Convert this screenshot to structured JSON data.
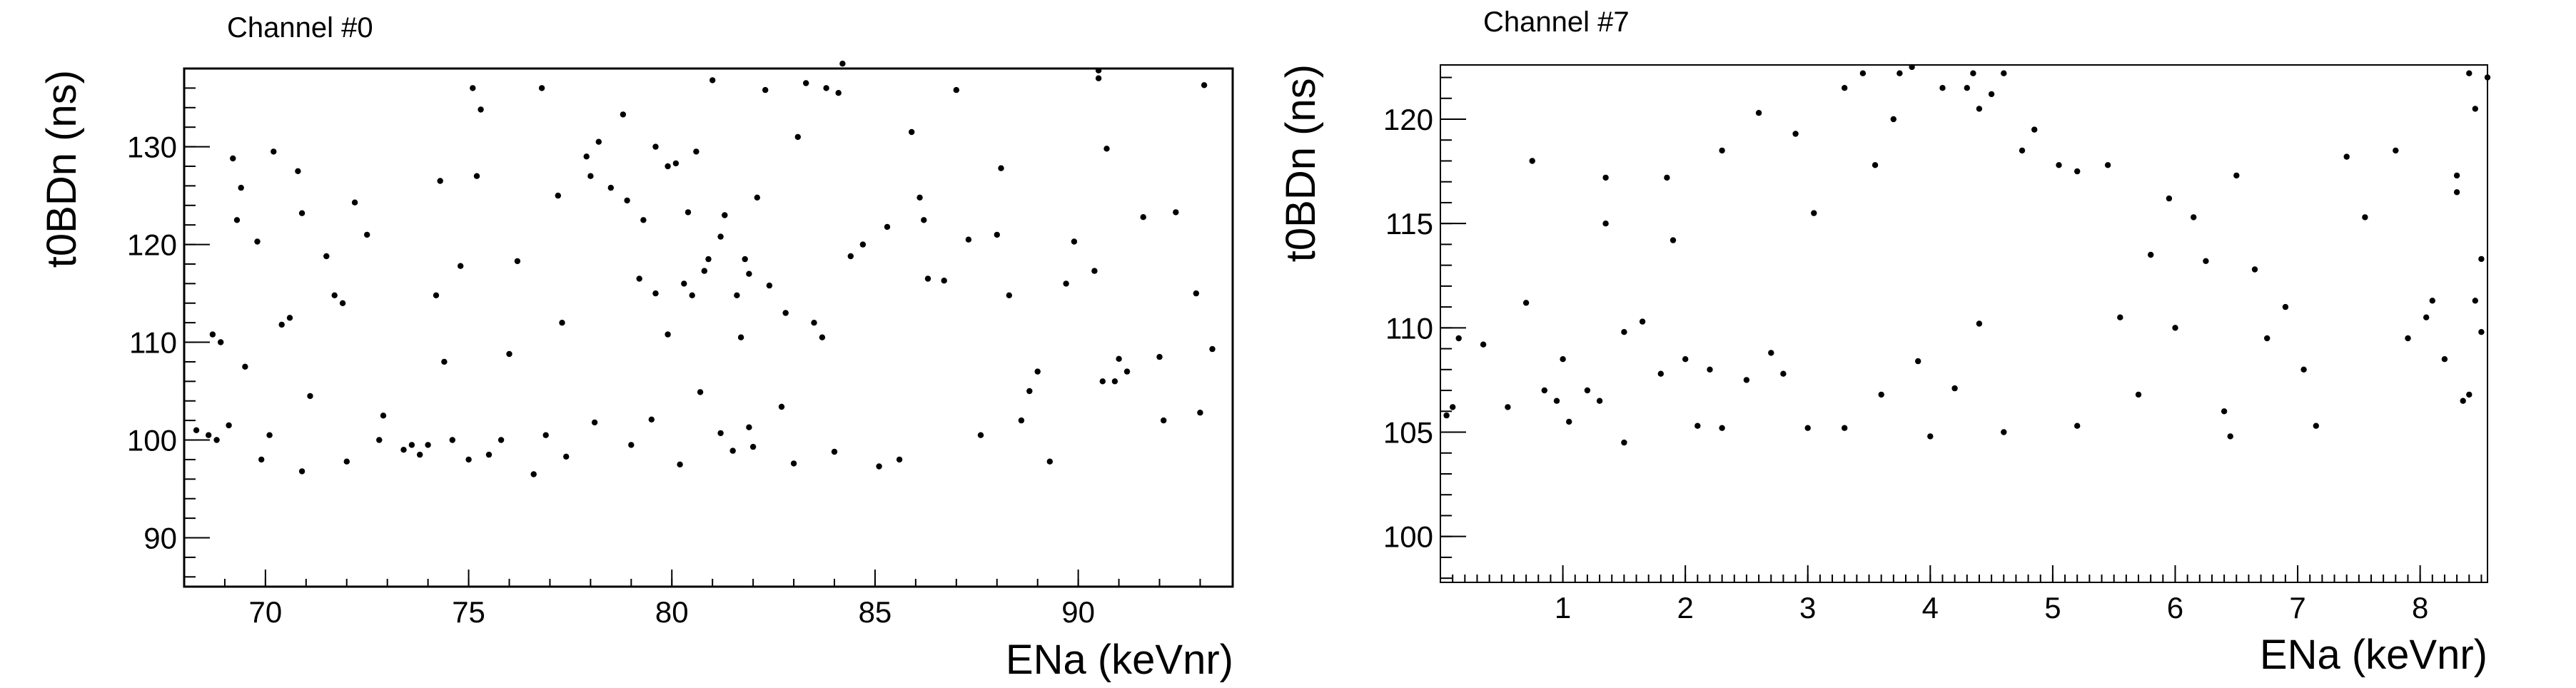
{
  "panels": [
    {
      "title": "Channel #0",
      "xlabel": "ENa (keVnr)",
      "ylabel": "t0BDn (ns)"
    },
    {
      "title": "Channel #7",
      "xlabel": "ENa (keVnr)",
      "ylabel": "t0BDn (ns)"
    }
  ],
  "chart_data": [
    {
      "type": "scatter",
      "title": "Channel #0",
      "xlabel": "ENa (keVnr)",
      "ylabel": "t0BDn (ns)",
      "xlim": [
        68,
        93.8
      ],
      "ylim": [
        85,
        138
      ],
      "xticks": [
        70,
        75,
        80,
        85,
        90
      ],
      "yticks": [
        90,
        100,
        110,
        120,
        130
      ],
      "grid": false,
      "legend": "none",
      "marker_color": "#000000",
      "points": [
        [
          68.3,
          101
        ],
        [
          68.7,
          110.8
        ],
        [
          68.9,
          110
        ],
        [
          68.8,
          100
        ],
        [
          68.6,
          100.5
        ],
        [
          69.2,
          128.8
        ],
        [
          69.4,
          125.8
        ],
        [
          69.5,
          107.5
        ],
        [
          69.3,
          122.5
        ],
        [
          69.1,
          101.5
        ],
        [
          69.8,
          120.3
        ],
        [
          69.9,
          98
        ],
        [
          70.1,
          100.5
        ],
        [
          70.2,
          129.5
        ],
        [
          70.4,
          111.8
        ],
        [
          70.6,
          112.5
        ],
        [
          70.8,
          127.5
        ],
        [
          70.9,
          123.2
        ],
        [
          70.9,
          96.8
        ],
        [
          71.1,
          104.5
        ],
        [
          71.5,
          118.8
        ],
        [
          71.7,
          114.8
        ],
        [
          71.9,
          114
        ],
        [
          72.0,
          97.8
        ],
        [
          72.2,
          124.3
        ],
        [
          72.5,
          121
        ],
        [
          72.8,
          100
        ],
        [
          72.9,
          102.5
        ],
        [
          73.4,
          99
        ],
        [
          73.6,
          99.5
        ],
        [
          73.8,
          98.5
        ],
        [
          74.0,
          99.5
        ],
        [
          74.2,
          114.8
        ],
        [
          74.3,
          126.5
        ],
        [
          74.4,
          108
        ],
        [
          74.6,
          100
        ],
        [
          74.8,
          117.8
        ],
        [
          75.0,
          98
        ],
        [
          75.1,
          136
        ],
        [
          75.2,
          127
        ],
        [
          75.3,
          133.8
        ],
        [
          75.5,
          98.5
        ],
        [
          75.8,
          100
        ],
        [
          76.0,
          108.8
        ],
        [
          76.2,
          118.3
        ],
        [
          76.6,
          96.5
        ],
        [
          76.8,
          136
        ],
        [
          77.2,
          125
        ],
        [
          77.3,
          112
        ],
        [
          77.9,
          129
        ],
        [
          78.0,
          127
        ],
        [
          78.2,
          130.5
        ],
        [
          78.5,
          125.8
        ],
        [
          78.8,
          133.3
        ],
        [
          78.9,
          124.5
        ],
        [
          79.2,
          116.5
        ],
        [
          79.3,
          122.5
        ],
        [
          79.6,
          115
        ],
        [
          79.6,
          130
        ],
        [
          79.9,
          110.8
        ],
        [
          79.9,
          128
        ],
        [
          80.1,
          128.3
        ],
        [
          80.3,
          116
        ],
        [
          80.4,
          123.3
        ],
        [
          80.5,
          114.8
        ],
        [
          80.6,
          129.5
        ],
        [
          80.8,
          117.3
        ],
        [
          80.9,
          118.5
        ],
        [
          81.0,
          136.8
        ],
        [
          81.2,
          120.8
        ],
        [
          81.3,
          123
        ],
        [
          81.6,
          114.8
        ],
        [
          81.7,
          110.5
        ],
        [
          81.8,
          118.5
        ],
        [
          81.9,
          117
        ],
        [
          82.1,
          124.8
        ],
        [
          82.3,
          135.8
        ],
        [
          82.4,
          115.8
        ],
        [
          82.8,
          113
        ],
        [
          83.1,
          131
        ],
        [
          83.3,
          136.5
        ],
        [
          83.5,
          112
        ],
        [
          83.7,
          110.5
        ],
        [
          83.8,
          136
        ],
        [
          84.1,
          135.5
        ],
        [
          84.2,
          138.5
        ],
        [
          84.4,
          118.8
        ],
        [
          84.7,
          120
        ],
        [
          85.3,
          121.8
        ],
        [
          85.6,
          98
        ],
        [
          85.9,
          131.5
        ],
        [
          86.1,
          124.8
        ],
        [
          86.2,
          122.5
        ],
        [
          86.3,
          116.5
        ],
        [
          86.7,
          116.3
        ],
        [
          87.0,
          135.8
        ],
        [
          87.3,
          120.5
        ],
        [
          87.6,
          100.5
        ],
        [
          88.0,
          121
        ],
        [
          88.1,
          127.8
        ],
        [
          88.3,
          114.8
        ],
        [
          88.6,
          102
        ],
        [
          88.8,
          105
        ],
        [
          89.0,
          107
        ],
        [
          89.3,
          97.8
        ],
        [
          89.7,
          116
        ],
        [
          89.9,
          120.3
        ],
        [
          90.4,
          117.3
        ],
        [
          90.5,
          137
        ],
        [
          90.5,
          137.8
        ],
        [
          90.6,
          106
        ],
        [
          90.7,
          129.8
        ],
        [
          90.9,
          106
        ],
        [
          91.0,
          108.3
        ],
        [
          91.2,
          107
        ],
        [
          91.6,
          122.8
        ],
        [
          92.0,
          108.5
        ],
        [
          92.1,
          102
        ],
        [
          92.4,
          123.3
        ],
        [
          92.9,
          115
        ],
        [
          93.0,
          102.8
        ],
        [
          93.1,
          136.3
        ],
        [
          93.3,
          109.3
        ],
        [
          76.9,
          100.5
        ],
        [
          77.4,
          98.3
        ],
        [
          78.1,
          101.8
        ],
        [
          79.0,
          99.5
        ],
        [
          80.2,
          97.5
        ],
        [
          81.5,
          98.9
        ],
        [
          82.0,
          99.3
        ],
        [
          83.0,
          97.6
        ],
        [
          84.0,
          98.8
        ],
        [
          85.1,
          97.3
        ],
        [
          79.5,
          102.1
        ],
        [
          81.2,
          100.7
        ],
        [
          82.7,
          103.4
        ],
        [
          80.7,
          104.9
        ],
        [
          81.9,
          101.3
        ]
      ]
    },
    {
      "type": "scatter",
      "title": "Channel #7",
      "xlabel": "ENa (keVnr)",
      "ylabel": "t0BDn (ns)",
      "xlim": [
        0,
        8.55
      ],
      "ylim": [
        97.8,
        122.6
      ],
      "xticks": [
        1,
        2,
        3,
        4,
        5,
        6,
        7,
        8
      ],
      "yticks": [
        100,
        105,
        110,
        115,
        120
      ],
      "grid": false,
      "legend": "none",
      "marker_color": "#000000",
      "points": [
        [
          0.05,
          105.8
        ],
        [
          0.1,
          106.2
        ],
        [
          0.15,
          109.5
        ],
        [
          0.35,
          109.2
        ],
        [
          0.55,
          106.2
        ],
        [
          0.7,
          111.2
        ],
        [
          0.75,
          118
        ],
        [
          0.85,
          107
        ],
        [
          0.95,
          106.5
        ],
        [
          1.0,
          108.5
        ],
        [
          1.05,
          105.5
        ],
        [
          1.2,
          107
        ],
        [
          1.3,
          106.5
        ],
        [
          1.35,
          117.2
        ],
        [
          1.35,
          115
        ],
        [
          1.5,
          104.5
        ],
        [
          1.5,
          109.8
        ],
        [
          1.65,
          110.3
        ],
        [
          1.8,
          107.8
        ],
        [
          1.85,
          117.2
        ],
        [
          1.9,
          114.2
        ],
        [
          2.0,
          108.5
        ],
        [
          2.1,
          105.3
        ],
        [
          2.2,
          108
        ],
        [
          2.3,
          105.2
        ],
        [
          2.3,
          118.5
        ],
        [
          2.5,
          107.5
        ],
        [
          2.6,
          120.3
        ],
        [
          2.7,
          108.8
        ],
        [
          2.8,
          107.8
        ],
        [
          2.9,
          119.3
        ],
        [
          3.0,
          105.2
        ],
        [
          3.05,
          115.5
        ],
        [
          3.3,
          121.5
        ],
        [
          3.45,
          122.2
        ],
        [
          3.55,
          117.8
        ],
        [
          3.7,
          120
        ],
        [
          3.75,
          122.2
        ],
        [
          3.85,
          122.5
        ],
        [
          4.1,
          121.5
        ],
        [
          4.3,
          121.5
        ],
        [
          4.35,
          122.2
        ],
        [
          4.4,
          120.5
        ],
        [
          4.5,
          121.2
        ],
        [
          4.6,
          122.2
        ],
        [
          4.75,
          118.5
        ],
        [
          4.85,
          119.5
        ],
        [
          5.05,
          117.8
        ],
        [
          5.2,
          117.5
        ],
        [
          5.45,
          117.8
        ],
        [
          5.55,
          110.5
        ],
        [
          5.7,
          106.8
        ],
        [
          5.8,
          113.5
        ],
        [
          5.95,
          116.2
        ],
        [
          6.0,
          110
        ],
        [
          6.15,
          115.3
        ],
        [
          6.25,
          113.2
        ],
        [
          6.4,
          106
        ],
        [
          6.45,
          104.8
        ],
        [
          6.5,
          117.3
        ],
        [
          6.65,
          112.8
        ],
        [
          6.75,
          109.5
        ],
        [
          6.9,
          111
        ],
        [
          7.05,
          108
        ],
        [
          7.15,
          105.3
        ],
        [
          7.4,
          118.2
        ],
        [
          7.55,
          115.3
        ],
        [
          7.8,
          118.5
        ],
        [
          7.9,
          109.5
        ],
        [
          8.05,
          110.5
        ],
        [
          8.1,
          111.3
        ],
        [
          8.2,
          108.5
        ],
        [
          8.3,
          117.3
        ],
        [
          8.3,
          116.5
        ],
        [
          8.4,
          122.2
        ],
        [
          8.45,
          120.5
        ],
        [
          8.5,
          113.3
        ],
        [
          8.5,
          109.8
        ],
        [
          8.55,
          122
        ],
        [
          8.35,
          106.5
        ],
        [
          8.4,
          106.8
        ],
        [
          8.45,
          111.3
        ],
        [
          3.3,
          105.2
        ],
        [
          4.0,
          104.8
        ],
        [
          4.6,
          105.0
        ],
        [
          5.2,
          105.3
        ],
        [
          3.9,
          108.4
        ],
        [
          4.2,
          107.1
        ],
        [
          4.4,
          110.2
        ],
        [
          3.6,
          106.8
        ]
      ]
    }
  ]
}
